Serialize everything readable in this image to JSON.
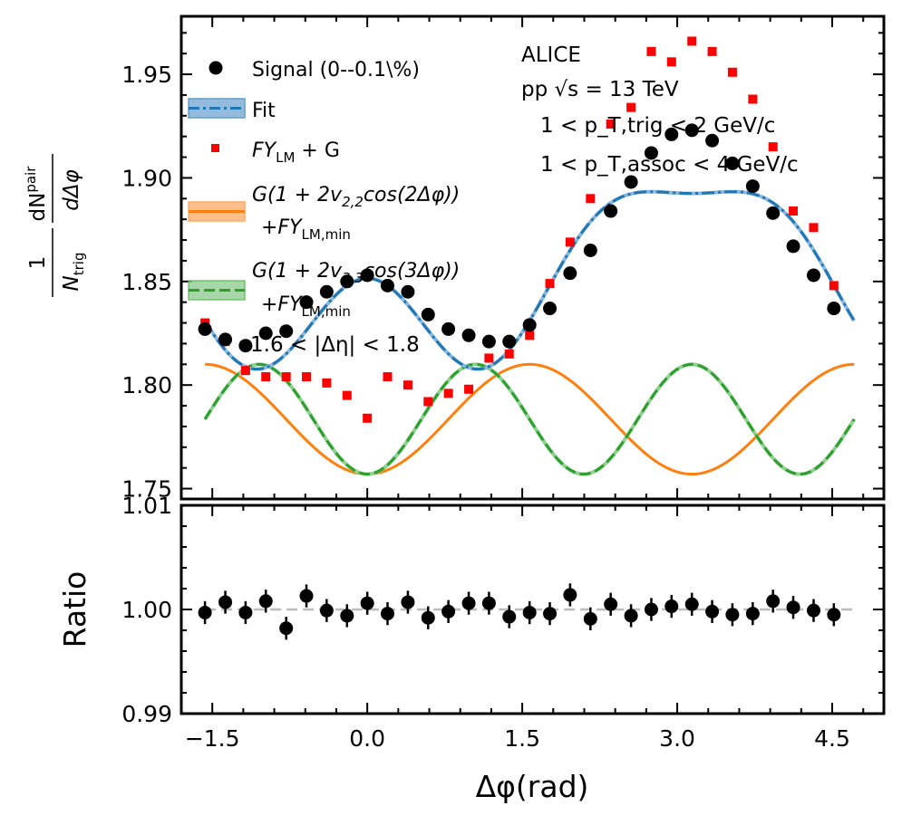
{
  "chart_data": [
    {
      "type": "scatter",
      "panel": "top",
      "xlabel": "Δφ(rad)",
      "ylabel": "1/N_trig dN^pair/dΔφ",
      "ylabel_parts": {
        "one": "1",
        "ntrig": "N",
        "ntrig_sub": "trig",
        "dn": "dN",
        "dn_sup": "pair",
        "dphi": "dΔφ"
      },
      "xlim": [
        -1.8,
        5.0
      ],
      "ylim": [
        1.745,
        1.978
      ],
      "x_ticks": [
        -1.5,
        0.0,
        1.5,
        3.0,
        4.5
      ],
      "x_tick_labels": [
        "−1.5",
        "0.0",
        "1.5",
        "3.0",
        "4.5"
      ],
      "y_ticks": [
        1.75,
        1.8,
        1.85,
        1.9,
        1.95
      ],
      "y_tick_labels": [
        "1.75",
        "1.80",
        "1.85",
        "1.90",
        "1.95"
      ],
      "legend_placement": "upper-left",
      "annotations": [
        "ALICE",
        "pp √s = 13 TeV",
        "1 < p_T,trig < 2 GeV/c",
        "1 < p_T,assoc < 4 GeV/c",
        "1.6 < |Δη| < 1.8"
      ],
      "legend": {
        "signal": "Signal (0--0.1\\%)",
        "fit": "Fit",
        "fylm": {
          "main": "FY",
          "sub": "LM",
          "rest": " + G"
        },
        "v22": {
          "line1": "G(1 + 2v",
          "line1_sub": "2,2",
          "line1_rest": "cos(2Δφ))",
          "line2": "+FY",
          "line2_sub": "LM,min"
        },
        "v33": {
          "line1": "G(1 + 2v",
          "line1_sub": "3,3",
          "line1_rest": "cos(3Δφ))",
          "line2": "+FY",
          "line2_sub": "LM,min"
        }
      },
      "series": [
        {
          "name": "Signal (0--0.1\\%)",
          "marker": "circle",
          "color": "#000000",
          "x": [
            -1.571,
            -1.374,
            -1.178,
            -0.982,
            -0.785,
            -0.589,
            -0.393,
            -0.196,
            0.0,
            0.196,
            0.393,
            0.589,
            0.785,
            0.982,
            1.178,
            1.374,
            1.571,
            1.767,
            1.963,
            2.16,
            2.356,
            2.553,
            2.749,
            2.945,
            3.142,
            3.338,
            3.534,
            3.731,
            3.927,
            4.123,
            4.32,
            4.516
          ],
          "y": [
            1.827,
            1.822,
            1.819,
            1.825,
            1.826,
            1.84,
            1.845,
            1.85,
            1.853,
            1.848,
            1.845,
            1.834,
            1.827,
            1.824,
            1.821,
            1.821,
            1.829,
            1.837,
            1.854,
            1.865,
            1.884,
            1.898,
            1.912,
            1.921,
            1.923,
            1.918,
            1.907,
            1.896,
            1.883,
            1.867,
            1.853,
            1.837
          ]
        },
        {
          "name": "FY_LM + G",
          "marker": "square",
          "color": "#ff0000",
          "x": [
            -1.571,
            -1.374,
            -1.178,
            -0.982,
            -0.785,
            -0.589,
            -0.393,
            -0.196,
            0.0,
            0.196,
            0.393,
            0.589,
            0.785,
            0.982,
            1.178,
            1.374,
            1.571,
            1.767,
            1.963,
            2.16,
            2.356,
            2.553,
            2.749,
            2.945,
            3.142,
            3.338,
            3.534,
            3.731,
            3.927,
            4.123,
            4.32,
            4.516
          ],
          "y": [
            1.83,
            1.821,
            1.807,
            1.804,
            1.804,
            1.804,
            1.801,
            1.795,
            1.784,
            1.804,
            1.8,
            1.792,
            1.796,
            1.798,
            1.813,
            1.815,
            1.824,
            1.849,
            1.869,
            1.89,
            1.926,
            1.934,
            1.961,
            1.956,
            1.966,
            1.961,
            1.951,
            1.938,
            1.915,
            1.884,
            1.876,
            1.848
          ]
        },
        {
          "name": "Fit",
          "type": "line",
          "color": "#1f77b4",
          "function": {
            "baseline": 1.8515,
            "a1": -0.036,
            "a2": 0.0205,
            "a3": 0.0155
          },
          "x_range": [
            -1.571,
            4.712
          ]
        },
        {
          "name": "G(1 + 2v_2,2 cos(2Δφ)) + FY_LM,min",
          "type": "line",
          "color": "#ff7f0e",
          "function": {
            "center": 1.7835,
            "amp": 0.0265,
            "harmonic": 2
          },
          "x_range": [
            -1.571,
            4.712
          ]
        },
        {
          "name": "G(1 + 2v_3,3 cos(3Δφ)) + FY_LM,min",
          "type": "line",
          "color": "#2ca02c",
          "function": {
            "center": 1.7835,
            "amp": 0.0265,
            "harmonic": 3
          },
          "x_range": [
            -1.571,
            4.712
          ]
        }
      ]
    },
    {
      "type": "scatter",
      "panel": "bottom",
      "xlabel": "Δφ(rad)",
      "ylabel": "Ratio",
      "xlim": [
        -1.8,
        5.0
      ],
      "ylim": [
        0.99,
        1.01
      ],
      "y_ticks": [
        0.99,
        1.0,
        1.01
      ],
      "y_tick_labels": [
        "0.99",
        "1.00",
        "1.01"
      ],
      "reference_line": 1.0,
      "series": [
        {
          "name": "Ratio",
          "marker": "circle",
          "color": "#000000",
          "x": [
            -1.571,
            -1.374,
            -1.178,
            -0.982,
            -0.785,
            -0.589,
            -0.393,
            -0.196,
            0.0,
            0.196,
            0.393,
            0.589,
            0.785,
            0.982,
            1.178,
            1.374,
            1.571,
            1.767,
            1.963,
            2.16,
            2.356,
            2.553,
            2.749,
            2.945,
            3.142,
            3.338,
            3.534,
            3.731,
            3.927,
            4.123,
            4.32,
            4.516
          ],
          "y": [
            0.9997,
            1.0007,
            0.9997,
            1.0008,
            0.9982,
            1.0013,
            0.9999,
            0.9994,
            1.0006,
            0.9996,
            1.0007,
            0.9992,
            0.9998,
            1.0006,
            1.0006,
            0.9993,
            0.9997,
            0.9996,
            1.0014,
            0.9991,
            1.0005,
            0.9994,
            1.0,
            1.0003,
            1.0005,
            0.9998,
            0.9995,
            0.9996,
            1.0008,
            1.0002,
            0.9999,
            0.9995
          ],
          "yerr": 0.0011
        }
      ]
    }
  ]
}
